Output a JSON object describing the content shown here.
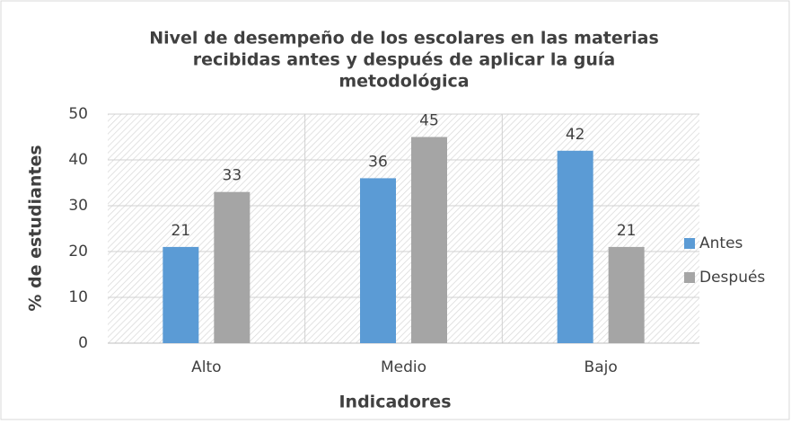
{
  "chart_data": {
    "type": "bar",
    "title": [
      "Nivel de desempeño de los escolares en las  materias",
      "recibidas antes y después de aplicar la guía",
      "metodológica"
    ],
    "x_label": "Indicadores",
    "y_label": "% de estudiantes",
    "categories": [
      "Alto",
      "Medio",
      "Bajo"
    ],
    "series": [
      {
        "name": "Antes",
        "color": "#5b9bd5",
        "values": [
          21,
          36,
          42
        ]
      },
      {
        "name": "Después",
        "color": "#a5a5a5",
        "values": [
          33,
          45,
          21
        ]
      }
    ],
    "ylim": [
      0,
      50
    ],
    "yticks": [
      0,
      10,
      20,
      30,
      40,
      50
    ],
    "grid": true,
    "legend": "right"
  }
}
